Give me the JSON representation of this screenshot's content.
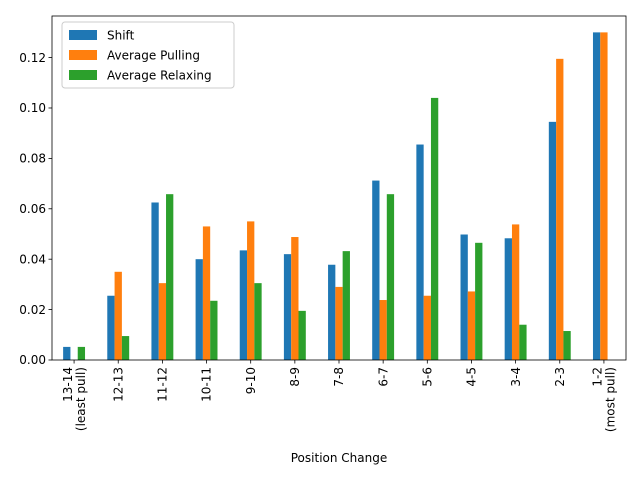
{
  "chart_data": {
    "type": "bar",
    "title": "",
    "xlabel": "Position Change",
    "ylabel": "",
    "ylim": [
      0,
      0.1365
    ],
    "yticks": [
      0.0,
      0.02,
      0.04,
      0.06,
      0.08,
      0.1,
      0.12
    ],
    "ytick_labels": [
      "0.00",
      "0.02",
      "0.04",
      "0.06",
      "0.08",
      "0.10",
      "0.12"
    ],
    "grid": false,
    "legend_position": "top-left",
    "categories": [
      [
        "13-14",
        "(least pull)"
      ],
      [
        "12-13"
      ],
      [
        "11-12"
      ],
      [
        "10-11"
      ],
      [
        "9-10"
      ],
      [
        "8-9"
      ],
      [
        "7-8"
      ],
      [
        "6-7"
      ],
      [
        "5-6"
      ],
      [
        "4-5"
      ],
      [
        "3-4"
      ],
      [
        "2-3"
      ],
      [
        "1-2",
        "(most pull)"
      ]
    ],
    "series": [
      {
        "name": "Shift",
        "color": "#1f77b4",
        "values": [
          0.0052,
          0.0255,
          0.0625,
          0.04,
          0.0435,
          0.042,
          0.0378,
          0.0712,
          0.0855,
          0.0498,
          0.0483,
          0.0945,
          0.13
        ]
      },
      {
        "name": "Average Pulling",
        "color": "#ff7f0e",
        "values": [
          0.0,
          0.035,
          0.0305,
          0.053,
          0.055,
          0.0488,
          0.029,
          0.0238,
          0.0255,
          0.0272,
          0.0538,
          0.1195,
          0.13
        ]
      },
      {
        "name": "Average Relaxing",
        "color": "#2ca02c",
        "values": [
          0.0052,
          0.0095,
          0.0658,
          0.0235,
          0.0305,
          0.0195,
          0.0432,
          0.0658,
          0.104,
          0.0465,
          0.014,
          0.0115,
          0.0
        ]
      }
    ]
  }
}
